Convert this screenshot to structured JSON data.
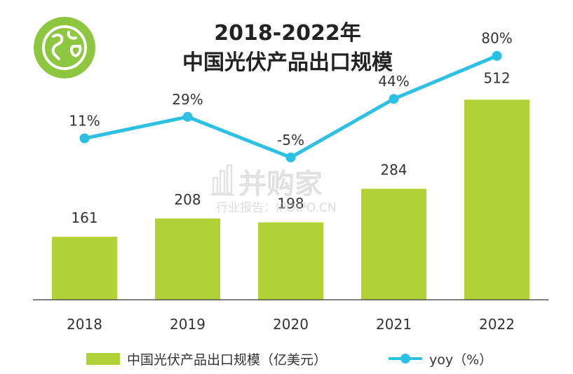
{
  "chart_data": {
    "type": "bar",
    "title": "2018-2022年",
    "subtitle": "中国光伏产品出口规模",
    "categories": [
      "2018",
      "2019",
      "2020",
      "2021",
      "2022"
    ],
    "series": [
      {
        "name": "中国光伏产品出口规模（亿美元）",
        "type": "bar",
        "values": [
          161,
          208,
          198,
          284,
          512
        ],
        "color": "#b0d235"
      },
      {
        "name": "yoy（%）",
        "type": "line",
        "values": [
          11,
          29,
          -5,
          44,
          80
        ],
        "labels": [
          "11%",
          "29%",
          "-5%",
          "44%",
          "80%"
        ],
        "color": "#2bc0e4"
      }
    ],
    "grid": false,
    "legend": "bottom"
  },
  "watermark": {
    "brand": "并购家",
    "tagline": "行业报告：IPOIPO.CN"
  },
  "logo": {
    "icon": "globe-icon",
    "color": "#8dc63f"
  }
}
